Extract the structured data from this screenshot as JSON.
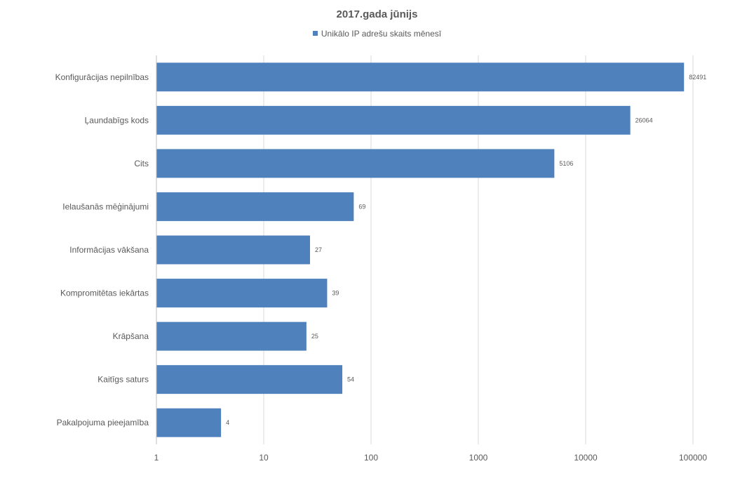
{
  "chart_data": {
    "type": "bar",
    "orientation": "horizontal",
    "title": "2017.gada jūnijs",
    "x_scale": "log",
    "xlim": [
      1,
      100000
    ],
    "x_ticks": [
      "1",
      "10",
      "100",
      "1000",
      "10000",
      "100000"
    ],
    "grid": true,
    "legend": "top-center",
    "categories": [
      "Konfigurācijas nepilnības",
      "Ļaundabīgs kods",
      "Cits",
      "Ielaušanās mēģinājumi",
      "Informācijas vākšana",
      "Kompromitētas iekārtas",
      "Krāpšana",
      "Kaitīgs saturs",
      "Pakalpojuma pieejamība"
    ],
    "series": [
      {
        "name": "Unikālo IP adrešu skaits mēnesī",
        "color": "#4f81bd",
        "values": [
          82491,
          26064,
          5106,
          69,
          27,
          39,
          25,
          54,
          4
        ]
      }
    ]
  }
}
